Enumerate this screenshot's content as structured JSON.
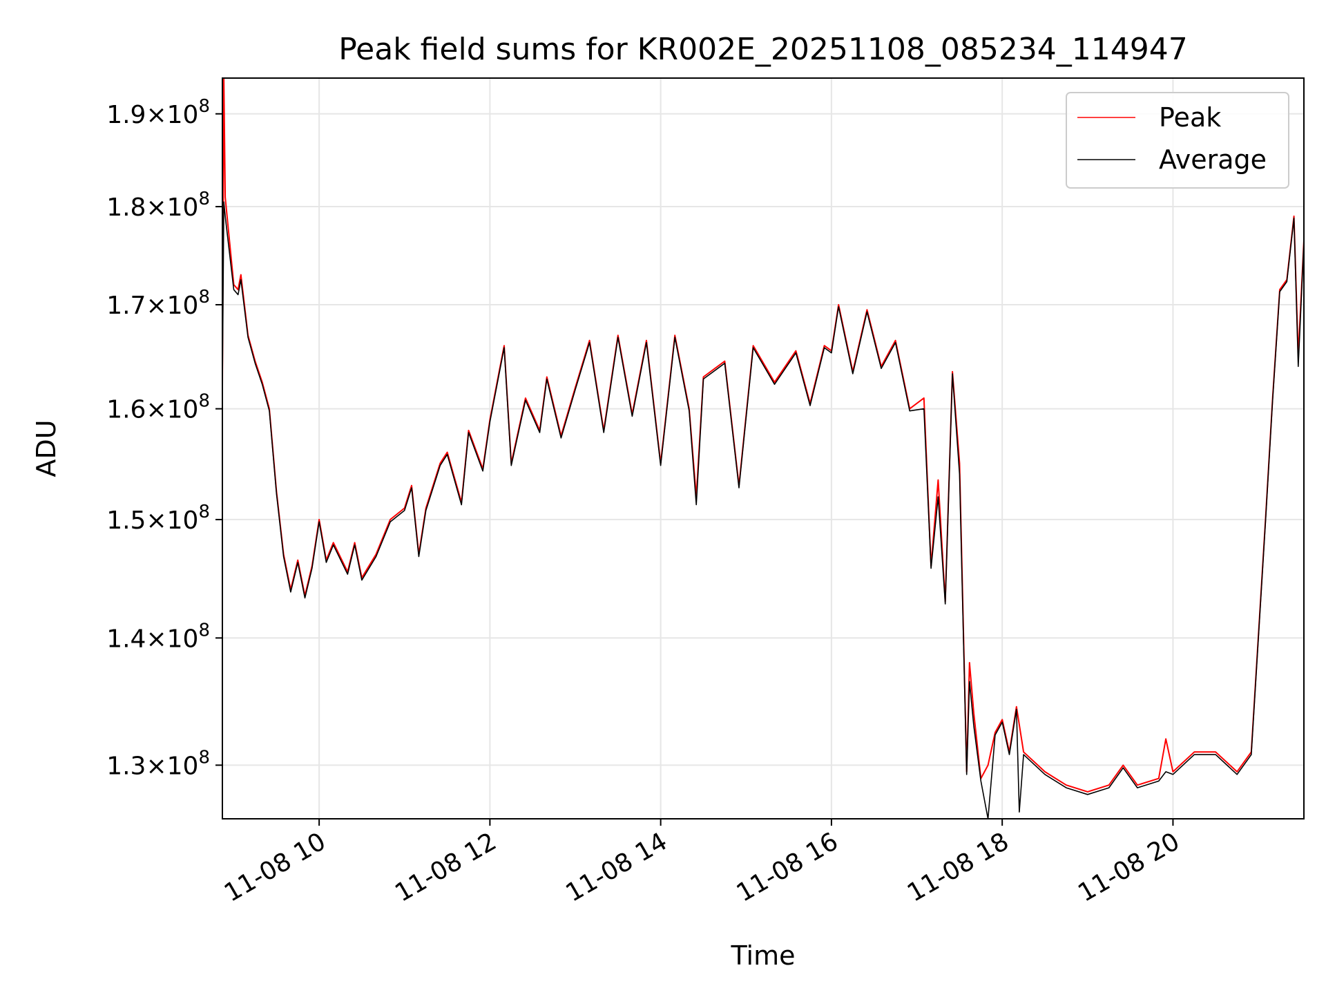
{
  "chart_data": {
    "type": "line",
    "title": "Peak field sums for KR002E_20251108_085234_114947",
    "xlabel": "Time",
    "ylabel": "ADU",
    "yscale": "log",
    "grid": true,
    "legend_position": "top-right",
    "xlim": [
      "2025-11-08 08:52",
      "2025-11-08 21:32"
    ],
    "ylim": [
      126000000,
      194000000
    ],
    "x_ticks": [
      {
        "value": "2025-11-08 10:00",
        "label": "11-08 10"
      },
      {
        "value": "2025-11-08 12:00",
        "label": "11-08 12"
      },
      {
        "value": "2025-11-08 14:00",
        "label": "11-08 14"
      },
      {
        "value": "2025-11-08 16:00",
        "label": "11-08 16"
      },
      {
        "value": "2025-11-08 18:00",
        "label": "11-08 18"
      },
      {
        "value": "2025-11-08 20:00",
        "label": "11-08 20"
      }
    ],
    "y_ticks": [
      {
        "value": 130000000,
        "mantissa": "1.3",
        "exponent": "8"
      },
      {
        "value": 140000000,
        "mantissa": "1.4",
        "exponent": "8"
      },
      {
        "value": 150000000,
        "mantissa": "1.5",
        "exponent": "8"
      },
      {
        "value": 160000000,
        "mantissa": "1.6",
        "exponent": "8"
      },
      {
        "value": 170000000,
        "mantissa": "1.7",
        "exponent": "8"
      },
      {
        "value": 180000000,
        "mantissa": "1.8",
        "exponent": "8"
      },
      {
        "value": 190000000,
        "mantissa": "1.9",
        "exponent": "8"
      }
    ],
    "series": [
      {
        "name": "Peak",
        "color": "#ff0000",
        "points": [
          [
            "2025-11-08 08:52",
            162000000
          ],
          [
            "2025-11-08 08:53",
            194000000
          ],
          [
            "2025-11-08 08:54",
            181000000
          ],
          [
            "2025-11-08 09:00",
            172000000
          ],
          [
            "2025-11-08 09:03",
            171500000
          ],
          [
            "2025-11-08 09:05",
            173000000
          ],
          [
            "2025-11-08 09:10",
            167000000
          ],
          [
            "2025-11-08 09:15",
            164500000
          ],
          [
            "2025-11-08 09:20",
            162500000
          ],
          [
            "2025-11-08 09:25",
            160000000
          ],
          [
            "2025-11-08 09:30",
            152500000
          ],
          [
            "2025-11-08 09:35",
            147000000
          ],
          [
            "2025-11-08 09:40",
            144000000
          ],
          [
            "2025-11-08 09:45",
            146500000
          ],
          [
            "2025-11-08 09:50",
            143500000
          ],
          [
            "2025-11-08 09:55",
            146000000
          ],
          [
            "2025-11-08 10:00",
            150000000
          ],
          [
            "2025-11-08 10:05",
            146500000
          ],
          [
            "2025-11-08 10:10",
            148000000
          ],
          [
            "2025-11-08 10:20",
            145500000
          ],
          [
            "2025-11-08 10:25",
            148000000
          ],
          [
            "2025-11-08 10:30",
            145000000
          ],
          [
            "2025-11-08 10:40",
            147000000
          ],
          [
            "2025-11-08 10:50",
            150000000
          ],
          [
            "2025-11-08 11:00",
            151000000
          ],
          [
            "2025-11-08 11:05",
            153000000
          ],
          [
            "2025-11-08 11:10",
            147000000
          ],
          [
            "2025-11-08 11:15",
            151000000
          ],
          [
            "2025-11-08 11:25",
            155000000
          ],
          [
            "2025-11-08 11:30",
            156000000
          ],
          [
            "2025-11-08 11:40",
            151500000
          ],
          [
            "2025-11-08 11:45",
            158000000
          ],
          [
            "2025-11-08 11:55",
            154500000
          ],
          [
            "2025-11-08 12:00",
            159000000
          ],
          [
            "2025-11-08 12:10",
            166000000
          ],
          [
            "2025-11-08 12:15",
            155000000
          ],
          [
            "2025-11-08 12:25",
            161000000
          ],
          [
            "2025-11-08 12:35",
            158000000
          ],
          [
            "2025-11-08 12:40",
            163000000
          ],
          [
            "2025-11-08 12:50",
            157500000
          ],
          [
            "2025-11-08 13:00",
            162000000
          ],
          [
            "2025-11-08 13:10",
            166500000
          ],
          [
            "2025-11-08 13:20",
            158000000
          ],
          [
            "2025-11-08 13:30",
            167000000
          ],
          [
            "2025-11-08 13:40",
            159500000
          ],
          [
            "2025-11-08 13:50",
            166500000
          ],
          [
            "2025-11-08 14:00",
            155000000
          ],
          [
            "2025-11-08 14:10",
            167000000
          ],
          [
            "2025-11-08 14:20",
            160000000
          ],
          [
            "2025-11-08 14:25",
            152000000
          ],
          [
            "2025-11-08 14:30",
            163000000
          ],
          [
            "2025-11-08 14:45",
            164500000
          ],
          [
            "2025-11-08 14:55",
            153000000
          ],
          [
            "2025-11-08 15:05",
            166000000
          ],
          [
            "2025-11-08 15:20",
            162500000
          ],
          [
            "2025-11-08 15:35",
            165500000
          ],
          [
            "2025-11-08 15:45",
            160500000
          ],
          [
            "2025-11-08 15:55",
            166000000
          ],
          [
            "2025-11-08 16:00",
            165500000
          ],
          [
            "2025-11-08 16:05",
            170000000
          ],
          [
            "2025-11-08 16:15",
            163500000
          ],
          [
            "2025-11-08 16:25",
            169500000
          ],
          [
            "2025-11-08 16:35",
            164000000
          ],
          [
            "2025-11-08 16:45",
            166500000
          ],
          [
            "2025-11-08 16:55",
            160000000
          ],
          [
            "2025-11-08 17:05",
            161000000
          ],
          [
            "2025-11-08 17:10",
            146000000
          ],
          [
            "2025-11-08 17:15",
            153500000
          ],
          [
            "2025-11-08 17:20",
            143000000
          ],
          [
            "2025-11-08 17:25",
            163500000
          ],
          [
            "2025-11-08 17:30",
            155000000
          ],
          [
            "2025-11-08 17:35",
            129500000
          ],
          [
            "2025-11-08 17:37",
            138000000
          ],
          [
            "2025-11-08 17:40",
            134000000
          ],
          [
            "2025-11-08 17:45",
            129000000
          ],
          [
            "2025-11-08 17:50",
            130000000
          ],
          [
            "2025-11-08 17:55",
            132500000
          ],
          [
            "2025-11-08 18:00",
            133500000
          ],
          [
            "2025-11-08 18:05",
            131000000
          ],
          [
            "2025-11-08 18:10",
            134500000
          ],
          [
            "2025-11-08 18:15",
            131000000
          ],
          [
            "2025-11-08 18:30",
            129500000
          ],
          [
            "2025-11-08 18:45",
            128500000
          ],
          [
            "2025-11-08 19:00",
            128000000
          ],
          [
            "2025-11-08 19:15",
            128500000
          ],
          [
            "2025-11-08 19:25",
            130000000
          ],
          [
            "2025-11-08 19:35",
            128500000
          ],
          [
            "2025-11-08 19:50",
            129000000
          ],
          [
            "2025-11-08 19:55",
            132000000
          ],
          [
            "2025-11-08 20:00",
            129500000
          ],
          [
            "2025-11-08 20:15",
            131000000
          ],
          [
            "2025-11-08 20:30",
            131000000
          ],
          [
            "2025-11-08 20:45",
            129500000
          ],
          [
            "2025-11-08 20:55",
            131000000
          ],
          [
            "2025-11-08 21:05",
            150000000
          ],
          [
            "2025-11-08 21:10",
            161000000
          ],
          [
            "2025-11-08 21:15",
            171500000
          ],
          [
            "2025-11-08 21:20",
            172500000
          ],
          [
            "2025-11-08 21:25",
            179000000
          ],
          [
            "2025-11-08 21:28",
            165000000
          ],
          [
            "2025-11-08 21:32",
            176500000
          ]
        ]
      },
      {
        "name": "Average",
        "color": "#000000",
        "points": [
          [
            "2025-11-08 08:52",
            162000000
          ],
          [
            "2025-11-08 08:53",
            180500000
          ],
          [
            "2025-11-08 08:54",
            179000000
          ],
          [
            "2025-11-08 09:00",
            171500000
          ],
          [
            "2025-11-08 09:03",
            171000000
          ],
          [
            "2025-11-08 09:05",
            172500000
          ],
          [
            "2025-11-08 09:10",
            166800000
          ],
          [
            "2025-11-08 09:15",
            164300000
          ],
          [
            "2025-11-08 09:20",
            162300000
          ],
          [
            "2025-11-08 09:25",
            159800000
          ],
          [
            "2025-11-08 09:30",
            152300000
          ],
          [
            "2025-11-08 09:35",
            146800000
          ],
          [
            "2025-11-08 09:40",
            143800000
          ],
          [
            "2025-11-08 09:45",
            146300000
          ],
          [
            "2025-11-08 09:50",
            143300000
          ],
          [
            "2025-11-08 09:55",
            145800000
          ],
          [
            "2025-11-08 10:00",
            149800000
          ],
          [
            "2025-11-08 10:05",
            146300000
          ],
          [
            "2025-11-08 10:10",
            147800000
          ],
          [
            "2025-11-08 10:20",
            145300000
          ],
          [
            "2025-11-08 10:25",
            147800000
          ],
          [
            "2025-11-08 10:30",
            144800000
          ],
          [
            "2025-11-08 10:40",
            146800000
          ],
          [
            "2025-11-08 10:50",
            149800000
          ],
          [
            "2025-11-08 11:00",
            150800000
          ],
          [
            "2025-11-08 11:05",
            152800000
          ],
          [
            "2025-11-08 11:10",
            146800000
          ],
          [
            "2025-11-08 11:15",
            150800000
          ],
          [
            "2025-11-08 11:25",
            154800000
          ],
          [
            "2025-11-08 11:30",
            155800000
          ],
          [
            "2025-11-08 11:40",
            151300000
          ],
          [
            "2025-11-08 11:45",
            157800000
          ],
          [
            "2025-11-08 11:55",
            154300000
          ],
          [
            "2025-11-08 12:00",
            158800000
          ],
          [
            "2025-11-08 12:10",
            165800000
          ],
          [
            "2025-11-08 12:15",
            154800000
          ],
          [
            "2025-11-08 12:25",
            160800000
          ],
          [
            "2025-11-08 12:35",
            157800000
          ],
          [
            "2025-11-08 12:40",
            162800000
          ],
          [
            "2025-11-08 12:50",
            157300000
          ],
          [
            "2025-11-08 13:00",
            161800000
          ],
          [
            "2025-11-08 13:10",
            166300000
          ],
          [
            "2025-11-08 13:20",
            157800000
          ],
          [
            "2025-11-08 13:30",
            166800000
          ],
          [
            "2025-11-08 13:40",
            159300000
          ],
          [
            "2025-11-08 13:50",
            166300000
          ],
          [
            "2025-11-08 14:00",
            154800000
          ],
          [
            "2025-11-08 14:10",
            166800000
          ],
          [
            "2025-11-08 14:20",
            159800000
          ],
          [
            "2025-11-08 14:25",
            151300000
          ],
          [
            "2025-11-08 14:30",
            162800000
          ],
          [
            "2025-11-08 14:45",
            164300000
          ],
          [
            "2025-11-08 14:55",
            152800000
          ],
          [
            "2025-11-08 15:05",
            165800000
          ],
          [
            "2025-11-08 15:20",
            162300000
          ],
          [
            "2025-11-08 15:35",
            165300000
          ],
          [
            "2025-11-08 15:45",
            160300000
          ],
          [
            "2025-11-08 15:55",
            165800000
          ],
          [
            "2025-11-08 16:00",
            165300000
          ],
          [
            "2025-11-08 16:05",
            169800000
          ],
          [
            "2025-11-08 16:15",
            163300000
          ],
          [
            "2025-11-08 16:25",
            169300000
          ],
          [
            "2025-11-08 16:35",
            163800000
          ],
          [
            "2025-11-08 16:45",
            166300000
          ],
          [
            "2025-11-08 16:55",
            159800000
          ],
          [
            "2025-11-08 17:05",
            160000000
          ],
          [
            "2025-11-08 17:10",
            145800000
          ],
          [
            "2025-11-08 17:15",
            152000000
          ],
          [
            "2025-11-08 17:20",
            142800000
          ],
          [
            "2025-11-08 17:25",
            163300000
          ],
          [
            "2025-11-08 17:30",
            154000000
          ],
          [
            "2025-11-08 17:35",
            129300000
          ],
          [
            "2025-11-08 17:37",
            136500000
          ],
          [
            "2025-11-08 17:40",
            133000000
          ],
          [
            "2025-11-08 17:45",
            128800000
          ],
          [
            "2025-11-08 17:50",
            126000000
          ],
          [
            "2025-11-08 17:55",
            132300000
          ],
          [
            "2025-11-08 18:00",
            133300000
          ],
          [
            "2025-11-08 18:05",
            130800000
          ],
          [
            "2025-11-08 18:10",
            134300000
          ],
          [
            "2025-11-08 18:12",
            126500000
          ],
          [
            "2025-11-08 18:15",
            130800000
          ],
          [
            "2025-11-08 18:30",
            129300000
          ],
          [
            "2025-11-08 18:45",
            128300000
          ],
          [
            "2025-11-08 19:00",
            127800000
          ],
          [
            "2025-11-08 19:15",
            128300000
          ],
          [
            "2025-11-08 19:25",
            129800000
          ],
          [
            "2025-11-08 19:35",
            128300000
          ],
          [
            "2025-11-08 19:50",
            128800000
          ],
          [
            "2025-11-08 19:55",
            129500000
          ],
          [
            "2025-11-08 20:00",
            129300000
          ],
          [
            "2025-11-08 20:15",
            130800000
          ],
          [
            "2025-11-08 20:30",
            130800000
          ],
          [
            "2025-11-08 20:45",
            129300000
          ],
          [
            "2025-11-08 20:55",
            130800000
          ],
          [
            "2025-11-08 21:05",
            149800000
          ],
          [
            "2025-11-08 21:10",
            160800000
          ],
          [
            "2025-11-08 21:15",
            171300000
          ],
          [
            "2025-11-08 21:20",
            172300000
          ],
          [
            "2025-11-08 21:25",
            178800000
          ],
          [
            "2025-11-08 21:28",
            164000000
          ],
          [
            "2025-11-08 21:32",
            176300000
          ]
        ]
      }
    ]
  }
}
